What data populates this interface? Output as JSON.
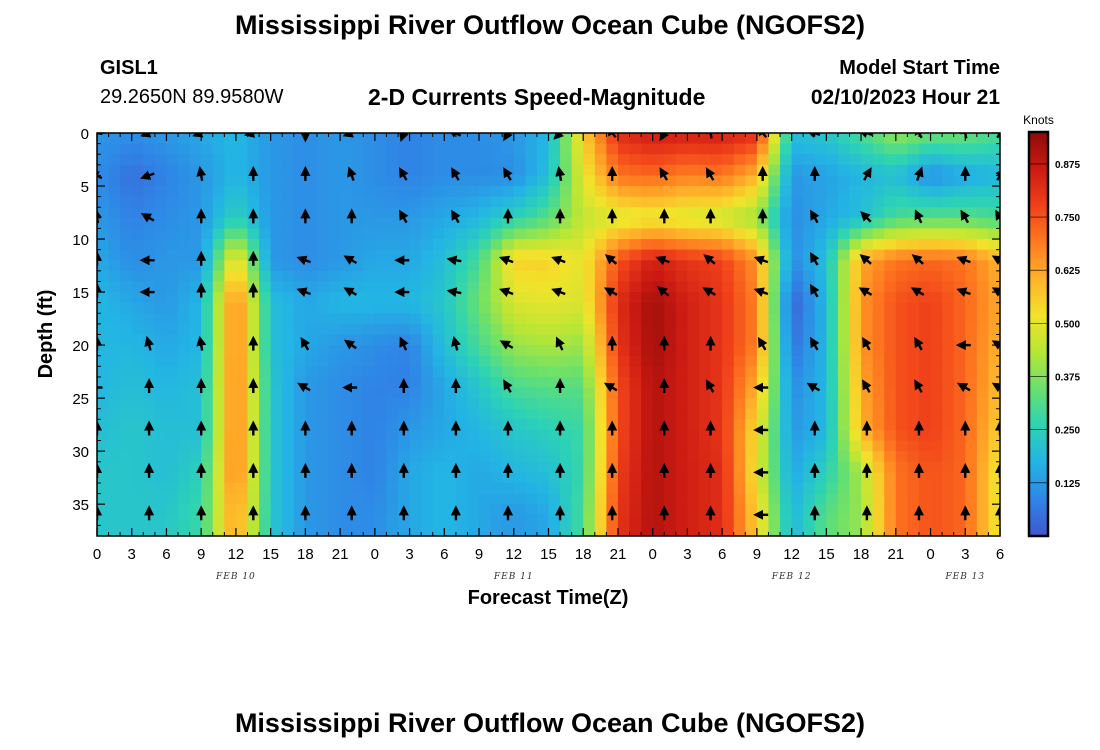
{
  "header": {
    "title": "Mississippi River Outflow Ocean Cube (NGOFS2)",
    "station_id": "GISL1",
    "station_coords": "29.2650N  89.9580W",
    "subtitle": "2-D Currents Speed-Magnitude",
    "model_start_label": "Model Start Time",
    "model_start_value": "02/10/2023 Hour 21"
  },
  "footer": {
    "repeat_title": "Mississippi River Outflow Ocean Cube (NGOFS2)"
  },
  "chart_data": {
    "type": "heatmap",
    "title": "2-D Currents Speed-Magnitude",
    "xlabel": "Forecast Time(Z)",
    "ylabel": "Depth (ft)",
    "x_unit": "hours since Feb 10 00Z",
    "xlim": [
      0,
      78
    ],
    "ylim": [
      0,
      38
    ],
    "y_inverted": true,
    "x_ticks": [
      0,
      3,
      6,
      9,
      12,
      15,
      18,
      21,
      24,
      27,
      30,
      33,
      36,
      39,
      42,
      45,
      48,
      51,
      54,
      57,
      60,
      63,
      66,
      69,
      72,
      75,
      78
    ],
    "x_tick_labels": [
      "0",
      "3",
      "6",
      "9",
      "12",
      "15",
      "18",
      "21",
      "0",
      "3",
      "6",
      "9",
      "12",
      "15",
      "18",
      "21",
      "0",
      "3",
      "6",
      "9",
      "12",
      "15",
      "18",
      "21",
      "0",
      "3",
      "6"
    ],
    "y_ticks": [
      0,
      5,
      10,
      15,
      20,
      25,
      30,
      35
    ],
    "y_tick_labels": [
      "0",
      "5",
      "10",
      "15",
      "20",
      "25",
      "30",
      "35"
    ],
    "date_labels": [
      {
        "label": "FEB 10",
        "hour": 12
      },
      {
        "label": "FEB 11",
        "hour": 36
      },
      {
        "label": "FEB 12",
        "hour": 60
      },
      {
        "label": "FEB 13",
        "hour": 75
      }
    ],
    "colorbar": {
      "unit": "Knots",
      "min": 0.0,
      "max": 0.95,
      "ticks": [
        0.125,
        0.25,
        0.375,
        0.5,
        0.625,
        0.75,
        0.875
      ],
      "tick_labels": [
        "0.125",
        "0.250",
        "0.375",
        "0.500",
        "0.625",
        "0.750",
        "0.875"
      ],
      "colors": [
        "#3f56cf",
        "#2f86e6",
        "#23b4e4",
        "#2dd3b4",
        "#68e06e",
        "#b6e636",
        "#f2e32b",
        "#ffb22a",
        "#ff7a1f",
        "#f0401a",
        "#cb1a12",
        "#8f0a08"
      ]
    },
    "speed_hours": [
      0,
      3,
      6,
      9,
      12,
      15,
      18,
      21,
      24,
      27,
      30,
      33,
      36,
      39,
      42,
      45,
      48,
      51,
      54,
      57,
      60,
      63,
      66,
      69,
      72,
      75,
      78
    ],
    "speed_depths": [
      0,
      4,
      8,
      12,
      16,
      20,
      24,
      28,
      32,
      36,
      38
    ],
    "speed_knots": [
      [
        0.12,
        0.1,
        0.12,
        0.15,
        0.18,
        0.12,
        0.1,
        0.12,
        0.1,
        0.08,
        0.1,
        0.1,
        0.12,
        0.18,
        0.55,
        0.82,
        0.86,
        0.85,
        0.85,
        0.82,
        0.2,
        0.22,
        0.3,
        0.4,
        0.35,
        0.35,
        0.3
      ],
      [
        0.1,
        0.05,
        0.08,
        0.12,
        0.18,
        0.12,
        0.1,
        0.12,
        0.1,
        0.08,
        0.1,
        0.1,
        0.1,
        0.2,
        0.5,
        0.7,
        0.72,
        0.68,
        0.7,
        0.6,
        0.12,
        0.14,
        0.18,
        0.2,
        0.1,
        0.15,
        0.18
      ],
      [
        0.12,
        0.08,
        0.1,
        0.12,
        0.25,
        0.12,
        0.1,
        0.12,
        0.12,
        0.12,
        0.15,
        0.18,
        0.25,
        0.32,
        0.45,
        0.48,
        0.5,
        0.48,
        0.46,
        0.4,
        0.1,
        0.15,
        0.2,
        0.3,
        0.32,
        0.32,
        0.3
      ],
      [
        0.15,
        0.1,
        0.12,
        0.12,
        0.55,
        0.12,
        0.1,
        0.12,
        0.15,
        0.15,
        0.2,
        0.3,
        0.55,
        0.55,
        0.5,
        0.75,
        0.85,
        0.8,
        0.78,
        0.65,
        0.1,
        0.2,
        0.62,
        0.7,
        0.72,
        0.7,
        0.6
      ],
      [
        0.18,
        0.15,
        0.12,
        0.18,
        0.7,
        0.2,
        0.15,
        0.18,
        0.18,
        0.18,
        0.22,
        0.35,
        0.48,
        0.5,
        0.48,
        0.82,
        0.92,
        0.85,
        0.8,
        0.68,
        0.02,
        0.18,
        0.65,
        0.75,
        0.78,
        0.72,
        0.62
      ],
      [
        0.18,
        0.18,
        0.15,
        0.18,
        0.7,
        0.2,
        0.15,
        0.12,
        0.1,
        0.08,
        0.2,
        0.3,
        0.4,
        0.42,
        0.4,
        0.8,
        0.92,
        0.85,
        0.8,
        0.68,
        0.05,
        0.18,
        0.65,
        0.75,
        0.78,
        0.72,
        0.6
      ],
      [
        0.18,
        0.2,
        0.18,
        0.2,
        0.7,
        0.22,
        0.12,
        0.1,
        0.08,
        0.08,
        0.15,
        0.22,
        0.3,
        0.32,
        0.32,
        0.76,
        0.9,
        0.85,
        0.8,
        0.6,
        0.1,
        0.18,
        0.62,
        0.75,
        0.78,
        0.72,
        0.58
      ],
      [
        0.2,
        0.22,
        0.2,
        0.2,
        0.7,
        0.22,
        0.12,
        0.1,
        0.08,
        0.12,
        0.15,
        0.18,
        0.22,
        0.25,
        0.28,
        0.76,
        0.9,
        0.85,
        0.8,
        0.52,
        0.12,
        0.18,
        0.6,
        0.75,
        0.78,
        0.72,
        0.55
      ],
      [
        0.22,
        0.22,
        0.2,
        0.25,
        0.7,
        0.22,
        0.12,
        0.1,
        0.08,
        0.15,
        0.18,
        0.15,
        0.18,
        0.2,
        0.28,
        0.78,
        0.9,
        0.85,
        0.82,
        0.5,
        0.15,
        0.25,
        0.42,
        0.7,
        0.75,
        0.72,
        0.5
      ],
      [
        0.22,
        0.22,
        0.22,
        0.28,
        0.65,
        0.22,
        0.12,
        0.1,
        0.1,
        0.15,
        0.18,
        0.15,
        0.12,
        0.15,
        0.3,
        0.8,
        0.9,
        0.85,
        0.82,
        0.55,
        0.18,
        0.32,
        0.4,
        0.7,
        0.75,
        0.72,
        0.5
      ],
      [
        0.22,
        0.22,
        0.22,
        0.28,
        0.65,
        0.22,
        0.12,
        0.1,
        0.1,
        0.15,
        0.18,
        0.15,
        0.12,
        0.15,
        0.3,
        0.8,
        0.9,
        0.85,
        0.82,
        0.55,
        0.18,
        0.32,
        0.4,
        0.7,
        0.75,
        0.72,
        0.5
      ]
    ],
    "vector_hours": [
      0,
      4.5,
      9,
      13.5,
      18,
      22,
      26.5,
      31,
      35.5,
      40,
      44.5,
      49,
      53,
      57.5,
      62,
      66.5,
      71,
      75,
      78
    ],
    "vector_depths": [
      0,
      4,
      8,
      12,
      15,
      20,
      24,
      28,
      32,
      36
    ],
    "vector_dir_deg": [
      [
        280,
        250,
        250,
        255,
        180,
        250,
        200,
        300,
        210,
        225,
        320,
        210,
        350,
        320,
        290,
        290,
        330,
        350,
        30
      ],
      [
        300,
        250,
        350,
        0,
        0,
        340,
        330,
        330,
        330,
        350,
        0,
        330,
        330,
        0,
        0,
        30,
        20,
        0,
        30
      ],
      [
        350,
        300,
        0,
        0,
        0,
        0,
        330,
        330,
        0,
        0,
        0,
        0,
        0,
        0,
        330,
        315,
        335,
        330,
        330
      ],
      [
        0,
        270,
        0,
        0,
        290,
        300,
        270,
        280,
        290,
        290,
        310,
        290,
        310,
        290,
        330,
        310,
        310,
        290,
        300
      ],
      [
        0,
        270,
        0,
        0,
        290,
        300,
        270,
        280,
        290,
        290,
        300,
        310,
        300,
        290,
        330,
        300,
        300,
        290,
        300
      ],
      [
        0,
        345,
        350,
        0,
        330,
        305,
        335,
        345,
        300,
        335,
        0,
        0,
        0,
        330,
        330,
        330,
        330,
        270,
        300
      ],
      [
        270,
        0,
        0,
        0,
        300,
        270,
        0,
        0,
        330,
        0,
        300,
        0,
        330,
        270,
        300,
        330,
        330,
        300,
        300
      ],
      [
        0,
        0,
        0,
        0,
        0,
        0,
        0,
        0,
        0,
        0,
        0,
        0,
        0,
        270,
        0,
        0,
        0,
        0,
        0
      ],
      [
        0,
        0,
        0,
        0,
        0,
        0,
        0,
        0,
        0,
        0,
        0,
        0,
        0,
        270,
        0,
        0,
        0,
        0,
        0
      ],
      [
        0,
        0,
        0,
        0,
        0,
        0,
        0,
        0,
        0,
        0,
        0,
        0,
        0,
        270,
        0,
        0,
        0,
        0,
        0
      ]
    ]
  }
}
